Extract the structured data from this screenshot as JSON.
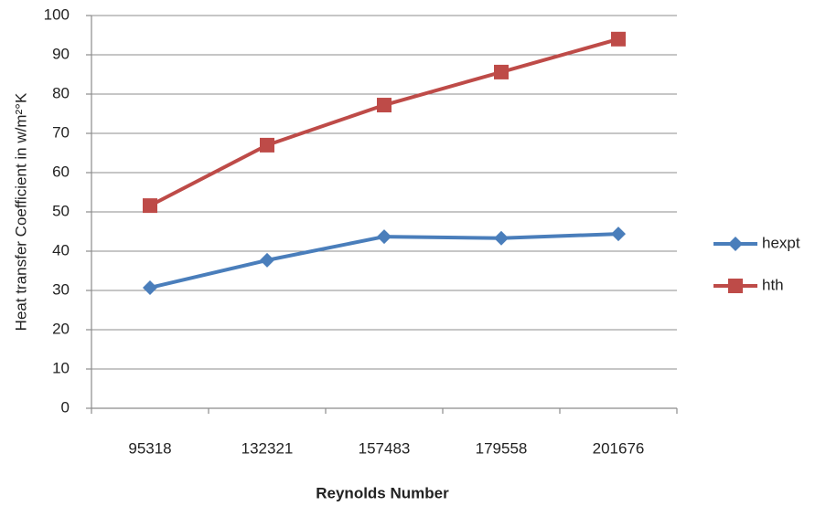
{
  "chart_data": {
    "type": "line",
    "x_label": "Reynolds Number",
    "y_label": "Heat transfer Coefficient in w/m²°K",
    "categories": [
      "95318",
      "132321",
      "157483",
      "179558",
      "201676"
    ],
    "series": [
      {
        "name": "hexpt",
        "color": "#4a7ebb",
        "marker": "diamond",
        "values": [
          30.7,
          37.7,
          43.7,
          43.3,
          44.4
        ]
      },
      {
        "name": "hth",
        "color": "#be4b48",
        "marker": "square",
        "values": [
          51.6,
          67,
          77.2,
          85.6,
          94
        ]
      }
    ],
    "ylim": [
      0,
      100
    ],
    "yticks": [
      0,
      10,
      20,
      30,
      40,
      50,
      60,
      70,
      80,
      90,
      100
    ],
    "grid": true,
    "legend": "right"
  }
}
